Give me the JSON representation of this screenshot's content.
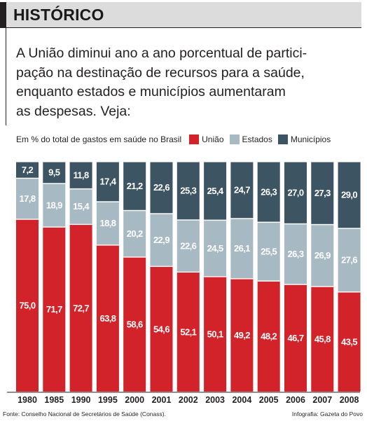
{
  "header": {
    "title": "HISTÓRICO"
  },
  "intro": {
    "lines": [
      "A União diminui ano a ano porcentual de partici-",
      "pação na destinação de recursos para a saúde,",
      "enquanto estados e municípios aumentaram",
      "as despesas. Veja:"
    ]
  },
  "colors": {
    "uniao": "#d2232a",
    "estados": "#a7b9c3",
    "municipios": "#3d5463",
    "title_bar": "#dcdcdd"
  },
  "chart_data": {
    "type": "bar",
    "stacked": true,
    "caption": "Em % do total de gastos em saúde no Brasil",
    "categories": [
      "1980",
      "1985",
      "1990",
      "1995",
      "2000",
      "2001",
      "2002",
      "2003",
      "2004",
      "2005",
      "2006",
      "2007",
      "2008"
    ],
    "series": [
      {
        "name": "União",
        "values": [
          75.0,
          71.7,
          72.7,
          63.8,
          58.6,
          54.6,
          52.1,
          50.1,
          49.2,
          48.2,
          46.7,
          45.8,
          43.5
        ],
        "labels": [
          "75,0",
          "71,7",
          "72,7",
          "63,8",
          "58,6",
          "54,6",
          "52,1",
          "50,1",
          "49,2",
          "48,2",
          "46,7",
          "45,8",
          "43,5"
        ]
      },
      {
        "name": "Estados",
        "values": [
          17.8,
          18.9,
          15.4,
          18.8,
          20.2,
          22.9,
          22.6,
          24.5,
          26.1,
          25.5,
          26.3,
          26.9,
          27.6
        ],
        "labels": [
          "17,8",
          "18,9",
          "15,4",
          "18,8",
          "20,2",
          "22,9",
          "22,6",
          "24,5",
          "26,1",
          "25,5",
          "26,3",
          "26,9",
          "27,6"
        ]
      },
      {
        "name": "Municípios",
        "values": [
          7.2,
          9.5,
          11.8,
          17.4,
          21.2,
          22.6,
          25.3,
          25.4,
          24.7,
          26.3,
          27.0,
          27.3,
          29.0
        ],
        "labels": [
          "7,2",
          "9,5",
          "11,8",
          "17,4",
          "21,2",
          "22,6",
          "25,3",
          "25,4",
          "24,7",
          "26,3",
          "27,0",
          "27,3",
          "29,0"
        ]
      }
    ],
    "ylim": [
      0,
      100
    ],
    "grid": false,
    "legend": "top-right"
  },
  "footer": {
    "source": "Fonte: Conselho Nacional de Secretários de Saúde (Conass).",
    "credit": "Infografia: Gazeta do Povo"
  }
}
